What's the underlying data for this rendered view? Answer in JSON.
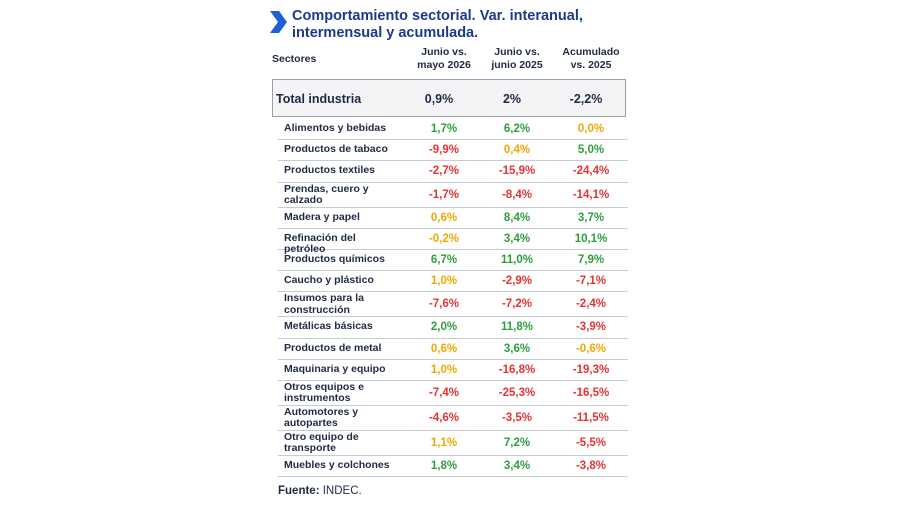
{
  "title_line1": "Comportamiento sectorial. Var. interanual,",
  "title_line2": "intermensual y acumulada.",
  "headers": {
    "sector": "Sectores",
    "c1_line1": "Junio vs.",
    "c1_line2": "mayo 2026",
    "c2_line1": "Junio vs.",
    "c2_line2": "junio 2025",
    "c3_line1": "Acumulado",
    "c3_line2": "vs. 2025"
  },
  "total": {
    "label": "Total industria",
    "v1": "0,9%",
    "v2": "2%",
    "v3": "-2,2%"
  },
  "colors": {
    "positive": "#2e9e3f",
    "negative": "#e23434",
    "neutral": "#f0a800",
    "title": "#1d3a8a"
  },
  "chart_data": {
    "type": "table",
    "title": "Comportamiento sectorial. Var. interanual, intermensual y acumulada.",
    "columns": [
      "Sectores",
      "Junio vs. mayo 2026",
      "Junio vs. junio 2025",
      "Acumulado vs. 2025"
    ],
    "rows": [
      {
        "sector": "Alimentos y bebidas",
        "v1": "1,7%",
        "v2": "6,2%",
        "v3": "0,0%",
        "c1": "positive",
        "c2": "positive",
        "c3": "neutral"
      },
      {
        "sector": "Productos de tabaco",
        "v1": "-9,9%",
        "v2": "0,4%",
        "v3": "5,0%",
        "c1": "negative",
        "c2": "neutral",
        "c3": "positive"
      },
      {
        "sector": "Productos textiles",
        "v1": "-2,7%",
        "v2": "-15,9%",
        "v3": "-24,4%",
        "c1": "negative",
        "c2": "negative",
        "c3": "negative"
      },
      {
        "sector": "Prendas, cuero y calzado",
        "v1": "-1,7%",
        "v2": "-8,4%",
        "v3": "-14,1%",
        "c1": "negative",
        "c2": "negative",
        "c3": "negative"
      },
      {
        "sector": "Madera y papel",
        "v1": "0,6%",
        "v2": "8,4%",
        "v3": "3,7%",
        "c1": "neutral",
        "c2": "positive",
        "c3": "positive"
      },
      {
        "sector": "Refinación del petróleo",
        "v1": "-0,2%",
        "v2": "3,4%",
        "v3": "10,1%",
        "c1": "neutral",
        "c2": "positive",
        "c3": "positive"
      },
      {
        "sector": "Productos químicos",
        "v1": "6,7%",
        "v2": "11,0%",
        "v3": "7,9%",
        "c1": "positive",
        "c2": "positive",
        "c3": "positive"
      },
      {
        "sector": "Caucho y plástico",
        "v1": "1,0%",
        "v2": "-2,9%",
        "v3": "-7,1%",
        "c1": "neutral",
        "c2": "negative",
        "c3": "negative"
      },
      {
        "sector": "Insumos para la construcción",
        "v1": "-7,6%",
        "v2": "-7,2%",
        "v3": "-2,4%",
        "c1": "negative",
        "c2": "negative",
        "c3": "negative"
      },
      {
        "sector": "Metálicas básicas",
        "v1": "2,0%",
        "v2": "11,8%",
        "v3": "-3,9%",
        "c1": "positive",
        "c2": "positive",
        "c3": "negative"
      },
      {
        "sector": "Productos de metal",
        "v1": "0,6%",
        "v2": "3,6%",
        "v3": "-0,6%",
        "c1": "neutral",
        "c2": "positive",
        "c3": "neutral"
      },
      {
        "sector": "Maquinaria y equipo",
        "v1": "1,0%",
        "v2": "-16,8%",
        "v3": "-19,3%",
        "c1": "neutral",
        "c2": "negative",
        "c3": "negative"
      },
      {
        "sector": "Otros equipos e instrumentos",
        "v1": "-7,4%",
        "v2": "-25,3%",
        "v3": "-16,5%",
        "c1": "negative",
        "c2": "negative",
        "c3": "negative"
      },
      {
        "sector": "Automotores y autopartes",
        "v1": "-4,6%",
        "v2": "-3,5%",
        "v3": "-11,5%",
        "c1": "negative",
        "c2": "negative",
        "c3": "negative"
      },
      {
        "sector": "Otro equipo de transporte",
        "v1": "1,1%",
        "v2": "7,2%",
        "v3": "-5,5%",
        "c1": "neutral",
        "c2": "positive",
        "c3": "negative"
      },
      {
        "sector": "Muebles y colchones",
        "v1": "1,8%",
        "v2": "3,4%",
        "v3": "-3,8%",
        "c1": "positive",
        "c2": "positive",
        "c3": "negative"
      }
    ]
  },
  "source": {
    "label": "Fuente:",
    "value": "INDEC."
  }
}
